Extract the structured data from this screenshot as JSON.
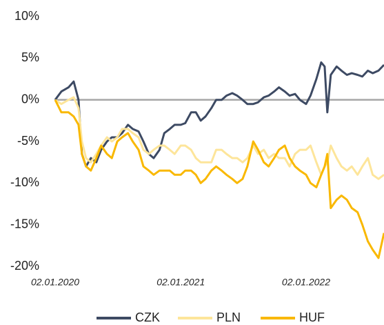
{
  "chart_data": {
    "type": "line",
    "x": [
      "2020-01-02",
      "2020-01-20",
      "2020-02-10",
      "2020-02-25",
      "2020-03-10",
      "2020-03-20",
      "2020-04-01",
      "2020-04-15",
      "2020-05-01",
      "2020-05-15",
      "2020-06-01",
      "2020-06-15",
      "2020-07-01",
      "2020-07-15",
      "2020-08-01",
      "2020-08-15",
      "2020-09-01",
      "2020-09-15",
      "2020-10-01",
      "2020-10-15",
      "2020-11-01",
      "2020-11-15",
      "2020-12-01",
      "2020-12-15",
      "2021-01-02",
      "2021-01-15",
      "2021-02-01",
      "2021-02-15",
      "2021-03-01",
      "2021-03-15",
      "2021-04-01",
      "2021-04-15",
      "2021-05-01",
      "2021-05-15",
      "2021-06-01",
      "2021-06-15",
      "2021-07-01",
      "2021-07-15",
      "2021-08-01",
      "2021-08-15",
      "2021-09-01",
      "2021-09-15",
      "2021-10-01",
      "2021-10-15",
      "2021-11-01",
      "2021-11-15",
      "2021-12-01",
      "2021-12-15",
      "2022-01-02",
      "2022-01-15",
      "2022-02-01",
      "2022-02-15",
      "2022-02-25",
      "2022-03-05",
      "2022-03-15",
      "2022-04-01",
      "2022-04-15",
      "2022-05-01",
      "2022-05-15",
      "2022-06-01",
      "2022-06-15",
      "2022-07-01",
      "2022-07-15",
      "2022-08-01",
      "2022-08-17"
    ],
    "series": [
      {
        "name": "CZK",
        "color": "#3d4a63",
        "values": [
          0,
          1,
          1.5,
          2.2,
          0,
          -6.5,
          -8,
          -7,
          -7.5,
          -6,
          -5,
          -4.5,
          -4.5,
          -4,
          -3,
          -3.5,
          -3.8,
          -5,
          -6.5,
          -7,
          -6,
          -4,
          -3.5,
          -3,
          -3,
          -2.8,
          -1.5,
          -1.5,
          -2.5,
          -2,
          -1,
          0,
          0,
          0.5,
          0.8,
          0.5,
          0,
          -0.5,
          -0.5,
          -0.3,
          0.3,
          0.5,
          1,
          1.5,
          1,
          0.5,
          0.7,
          0,
          -0.5,
          0.5,
          2.5,
          4.5,
          4,
          -1.5,
          3,
          4,
          3.5,
          3,
          3.2,
          3,
          2.8,
          3.5,
          3.2,
          3.5,
          4.2
        ]
      },
      {
        "name": "PLN",
        "color": "#fde59a",
        "values": [
          0,
          -0.5,
          0,
          0.3,
          -1,
          -5,
          -7,
          -7.5,
          -6.5,
          -5.5,
          -4.5,
          -5,
          -4.5,
          -3.5,
          -3.5,
          -4,
          -4.5,
          -6,
          -6.5,
          -6,
          -5.5,
          -5.5,
          -6,
          -6.5,
          -5.5,
          -5.5,
          -6,
          -7,
          -7.5,
          -7.5,
          -7.5,
          -6,
          -6,
          -6.5,
          -7,
          -7,
          -7.5,
          -7,
          -5.5,
          -6.5,
          -6,
          -7,
          -6.5,
          -7,
          -7,
          -8,
          -6.5,
          -6,
          -6,
          -5.5,
          -7.5,
          -9,
          -8,
          -7.5,
          -5.5,
          -7,
          -8,
          -8.5,
          -8,
          -9,
          -8,
          -7,
          -9,
          -9.5,
          -9
        ]
      },
      {
        "name": "HUF",
        "color": "#f9b800",
        "values": [
          0,
          -1.5,
          -1.5,
          -2,
          -3,
          -6.5,
          -8,
          -8.5,
          -7,
          -5.5,
          -6.5,
          -7,
          -5,
          -4.5,
          -4,
          -5,
          -6,
          -8,
          -8.5,
          -9,
          -8.5,
          -8.5,
          -8.5,
          -9,
          -9,
          -8.5,
          -8.5,
          -9,
          -10,
          -9.5,
          -8.5,
          -8,
          -8.5,
          -9,
          -9.5,
          -10,
          -9.5,
          -8,
          -5,
          -6,
          -7.5,
          -8,
          -7,
          -6,
          -5.5,
          -7,
          -8,
          -8.5,
          -9,
          -10,
          -10.5,
          -9,
          -8,
          -6.5,
          -13,
          -12,
          -11.5,
          -12,
          -13,
          -13.5,
          -15,
          -17,
          -18,
          -19,
          -16
        ]
      }
    ],
    "xlim": [
      "2020-01-02",
      "2022-08-17"
    ],
    "xticks": [
      {
        "value": "2020-01-02",
        "label": "02.01.2020"
      },
      {
        "value": "2021-01-02",
        "label": "02.01.2021"
      },
      {
        "value": "2022-01-02",
        "label": "02.01.2022"
      }
    ],
    "ylim": [
      -20,
      10
    ],
    "yticks": [
      {
        "value": 10,
        "label": "10%"
      },
      {
        "value": 5,
        "label": "5%"
      },
      {
        "value": 0,
        "label": "0%"
      },
      {
        "value": -5,
        "label": "-5%"
      },
      {
        "value": -10,
        "label": "-10%"
      },
      {
        "value": -15,
        "label": "-15%"
      },
      {
        "value": -20,
        "label": "-20%"
      }
    ],
    "zero_line": true,
    "legend": "bottom"
  }
}
